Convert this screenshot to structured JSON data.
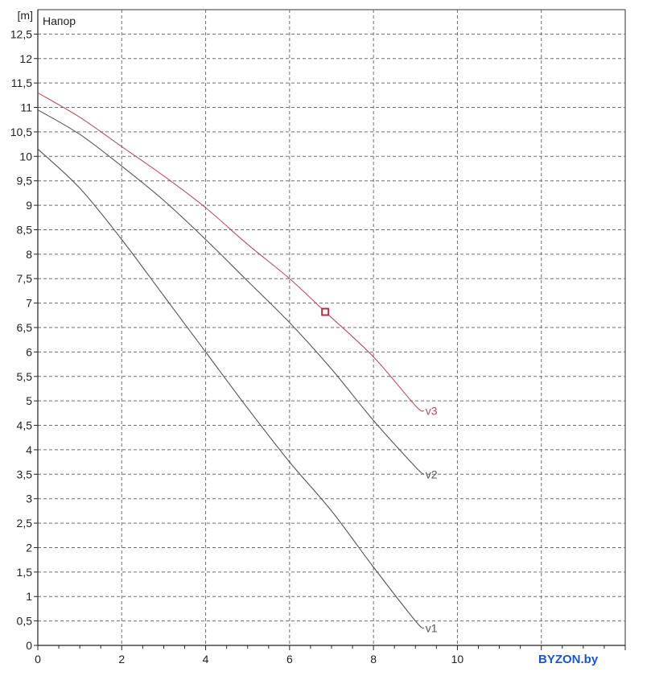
{
  "chart_data": {
    "type": "line",
    "ylabel": "Напор",
    "yunit": "[m]",
    "xlim": [
      0,
      14
    ],
    "ylim": [
      0,
      13
    ],
    "grid": true,
    "x_ticks": [
      {
        "value": 0,
        "label": "0"
      },
      {
        "value": 2,
        "label": "2"
      },
      {
        "value": 4,
        "label": "4"
      },
      {
        "value": 6,
        "label": "6"
      },
      {
        "value": 8,
        "label": "8"
      },
      {
        "value": 10,
        "label": "10"
      }
    ],
    "x_grid": [
      0,
      2,
      4,
      6,
      8,
      10,
      12,
      14
    ],
    "y_ticks": [
      {
        "value": 0,
        "label": "0"
      },
      {
        "value": 0.5,
        "label": "0,5"
      },
      {
        "value": 1,
        "label": "1"
      },
      {
        "value": 1.5,
        "label": "1,5"
      },
      {
        "value": 2,
        "label": "2"
      },
      {
        "value": 2.5,
        "label": "2,5"
      },
      {
        "value": 3,
        "label": "3"
      },
      {
        "value": 3.5,
        "label": "3,5"
      },
      {
        "value": 4,
        "label": "4"
      },
      {
        "value": 4.5,
        "label": "4,5"
      },
      {
        "value": 5,
        "label": "5"
      },
      {
        "value": 5.5,
        "label": "5,5"
      },
      {
        "value": 6,
        "label": "6"
      },
      {
        "value": 6.5,
        "label": "6,5"
      },
      {
        "value": 7,
        "label": "7"
      },
      {
        "value": 7.5,
        "label": "7,5"
      },
      {
        "value": 8,
        "label": "8"
      },
      {
        "value": 8.5,
        "label": "8,5"
      },
      {
        "value": 9,
        "label": "9"
      },
      {
        "value": 9.5,
        "label": "9,5"
      },
      {
        "value": 10,
        "label": "10"
      },
      {
        "value": 10.5,
        "label": "10,5"
      },
      {
        "value": 11,
        "label": "11"
      },
      {
        "value": 11.5,
        "label": "11,5"
      },
      {
        "value": 12,
        "label": "12"
      },
      {
        "value": 12.5,
        "label": "12,5"
      }
    ],
    "series": [
      {
        "name": "v1",
        "color": "#555555",
        "points": [
          [
            0,
            10.15
          ],
          [
            1,
            9.35
          ],
          [
            2,
            8.3
          ],
          [
            3,
            7.15
          ],
          [
            4,
            6.0
          ],
          [
            5,
            4.85
          ],
          [
            6,
            3.75
          ],
          [
            7,
            2.75
          ],
          [
            8,
            1.6
          ],
          [
            9,
            0.5
          ],
          [
            9.2,
            0.35
          ]
        ]
      },
      {
        "name": "v2",
        "color": "#555555",
        "points": [
          [
            0,
            10.95
          ],
          [
            1,
            10.45
          ],
          [
            2,
            9.8
          ],
          [
            3,
            9.1
          ],
          [
            4,
            8.3
          ],
          [
            5,
            7.45
          ],
          [
            6,
            6.6
          ],
          [
            7,
            5.65
          ],
          [
            8,
            4.6
          ],
          [
            9,
            3.65
          ],
          [
            9.2,
            3.5
          ]
        ]
      },
      {
        "name": "v3",
        "color": "#b05060",
        "points": [
          [
            0,
            11.3
          ],
          [
            1,
            10.8
          ],
          [
            2,
            10.2
          ],
          [
            3,
            9.6
          ],
          [
            4,
            8.95
          ],
          [
            5,
            8.2
          ],
          [
            6,
            7.5
          ],
          [
            6.85,
            6.82
          ],
          [
            8,
            5.9
          ],
          [
            9,
            4.9
          ],
          [
            9.2,
            4.8
          ]
        ]
      }
    ],
    "marker": {
      "series": "v3",
      "x": 6.85,
      "y": 6.82,
      "shape": "square",
      "color": "#b03040"
    },
    "watermark": "BYZON.by"
  }
}
